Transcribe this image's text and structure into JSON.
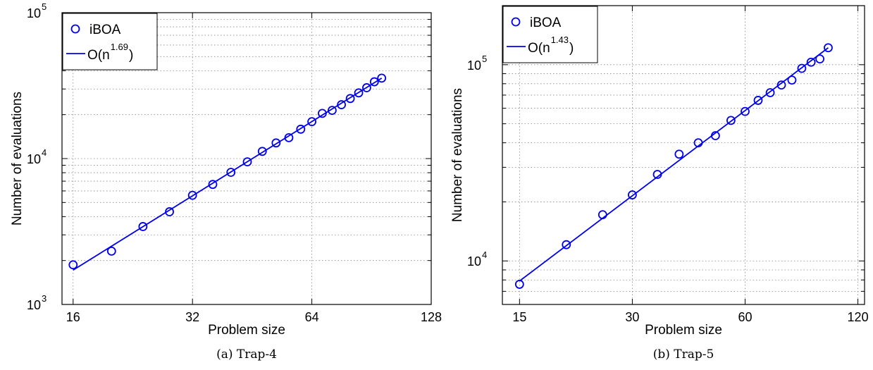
{
  "chart_data": [
    {
      "type": "scatter",
      "caption": "(a)  Trap-4",
      "xlabel": "Problem size",
      "ylabel": "Number of evaluations",
      "xscale": "log2",
      "yscale": "log10",
      "xlim": [
        15,
        128
      ],
      "ylim": [
        1000,
        100000
      ],
      "xticks": [
        {
          "value": 16,
          "label": "16"
        },
        {
          "value": 32,
          "label": "32"
        },
        {
          "value": 64,
          "label": "64"
        },
        {
          "value": 128,
          "label": "128"
        }
      ],
      "yticks": [
        {
          "value": 1000,
          "base": "10",
          "exp": "3"
        },
        {
          "value": 10000,
          "base": "10",
          "exp": "4"
        },
        {
          "value": 100000,
          "base": "10",
          "exp": "5"
        }
      ],
      "grid": true,
      "legend_position": "top-left",
      "color": "#0000ee",
      "series": [
        {
          "name": "iBOA",
          "marker": "circle",
          "x": [
            16,
            20,
            24,
            28,
            32,
            36,
            40,
            44,
            48,
            52,
            56,
            60,
            64,
            68,
            72,
            76,
            80,
            84,
            88,
            92,
            96
          ],
          "y": [
            1870,
            2320,
            3420,
            4320,
            5600,
            6650,
            8050,
            9500,
            11200,
            12800,
            13900,
            15900,
            17900,
            20400,
            21400,
            23400,
            25800,
            28200,
            30600,
            33600,
            35600
          ]
        },
        {
          "name_base": "O(n",
          "name_exp": "1.69",
          "name_tail": ")",
          "marker": "line",
          "exponent": 1.69,
          "x": [
            16,
            96
          ],
          "y": [
            1720,
            35600
          ]
        }
      ]
    },
    {
      "type": "scatter",
      "caption": "(b)  Trap-5",
      "xlabel": "Problem size",
      "ylabel": "Number of evaluations",
      "xscale": "log2",
      "yscale": "log10",
      "xlim": [
        13.5,
        125
      ],
      "ylim": [
        6000,
        200000
      ],
      "xticks": [
        {
          "value": 15,
          "label": "15"
        },
        {
          "value": 30,
          "label": "30"
        },
        {
          "value": 60,
          "label": "60"
        },
        {
          "value": 120,
          "label": "120"
        }
      ],
      "yticks": [
        {
          "value": 10000,
          "base": "10",
          "exp": "4"
        },
        {
          "value": 100000,
          "base": "10",
          "exp": "5"
        }
      ],
      "grid": true,
      "legend_position": "top-left",
      "color": "#0000ee",
      "series": [
        {
          "name": "iBOA",
          "marker": "circle",
          "x": [
            15,
            20,
            25,
            30,
            35,
            40,
            45,
            50,
            55,
            60,
            65,
            70,
            75,
            80,
            85,
            90,
            95,
            100
          ],
          "y": [
            7600,
            12100,
            17200,
            21700,
            27600,
            35000,
            40000,
            43500,
            52000,
            57800,
            65800,
            72000,
            78800,
            83500,
            95800,
            103000,
            107000,
            122000
          ]
        },
        {
          "name_base": "O(n",
          "name_exp": "1.43",
          "name_tail": ")",
          "marker": "line",
          "exponent": 1.43,
          "x": [
            15,
            100
          ],
          "y": [
            7900,
            122000
          ]
        }
      ]
    }
  ]
}
